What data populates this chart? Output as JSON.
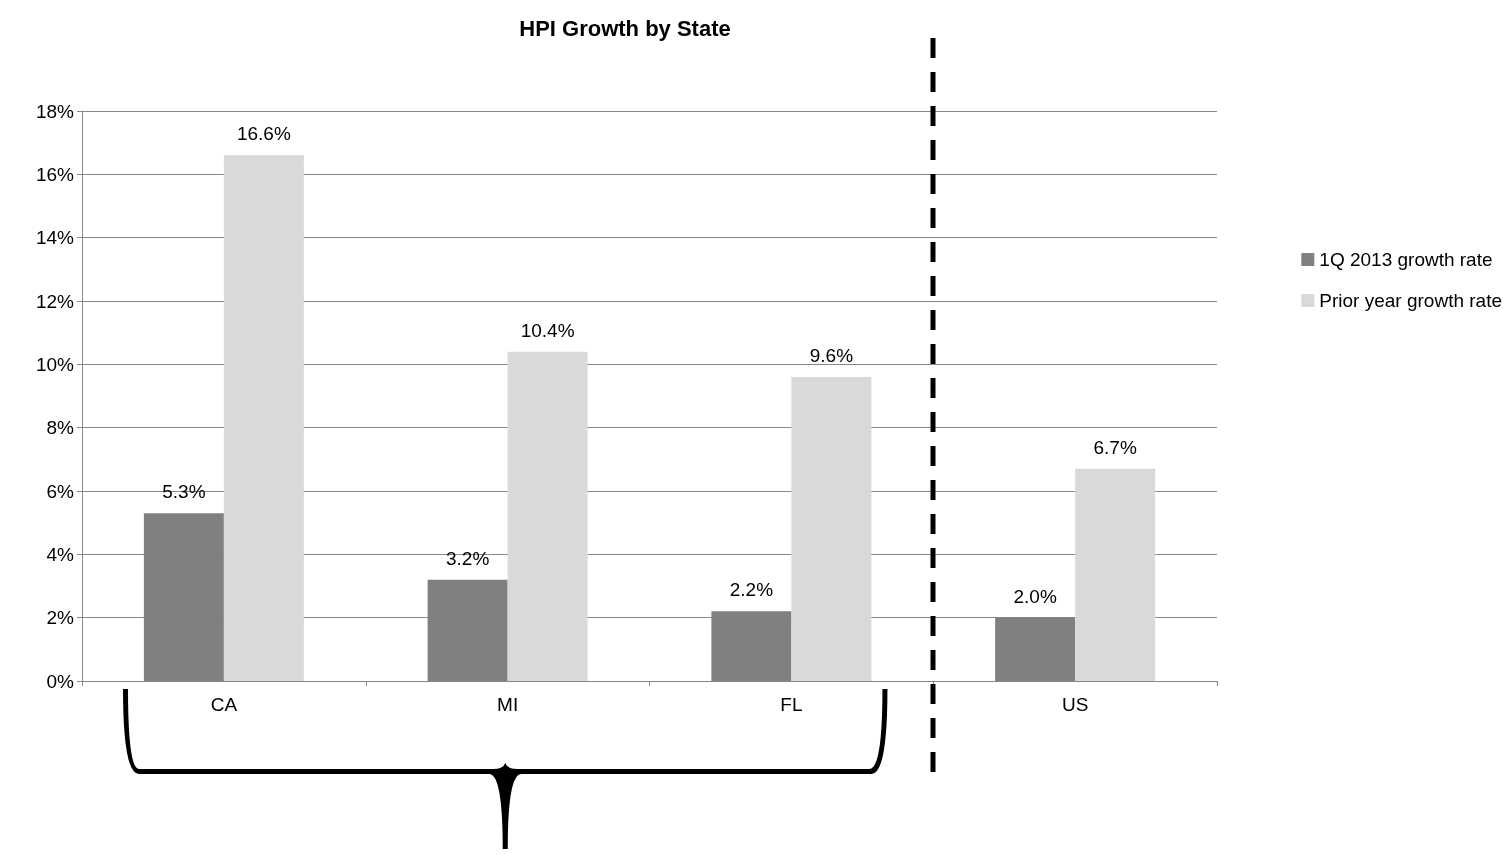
{
  "chart_data": {
    "type": "bar",
    "title": "HPI Growth by State",
    "categories": [
      "CA",
      "MI",
      "FL",
      "US"
    ],
    "series": [
      {
        "name": "1Q 2013 growth rate",
        "color": "#808080",
        "values": [
          5.3,
          3.2,
          2.2,
          2.0
        ],
        "value_labels": [
          "5.3%",
          "3.2%",
          "2.2%",
          "2.0%"
        ]
      },
      {
        "name": "Prior year growth rate",
        "color": "#d9d9d9",
        "values": [
          16.6,
          10.4,
          9.6,
          6.7
        ],
        "value_labels": [
          "16.6%",
          "10.4%",
          "9.6%",
          "6.7%"
        ]
      }
    ],
    "ylim": [
      0,
      18
    ],
    "yticks": [
      {
        "value": 0,
        "label": "0%"
      },
      {
        "value": 2,
        "label": "2%"
      },
      {
        "value": 4,
        "label": "4%"
      },
      {
        "value": 6,
        "label": "6%"
      },
      {
        "value": 8,
        "label": "8%"
      },
      {
        "value": 10,
        "label": "10%"
      },
      {
        "value": 12,
        "label": "12%"
      },
      {
        "value": 14,
        "label": "14%"
      },
      {
        "value": 16,
        "label": "16%"
      },
      {
        "value": 18,
        "label": "18%"
      }
    ],
    "grid": "y",
    "legend": "right"
  }
}
